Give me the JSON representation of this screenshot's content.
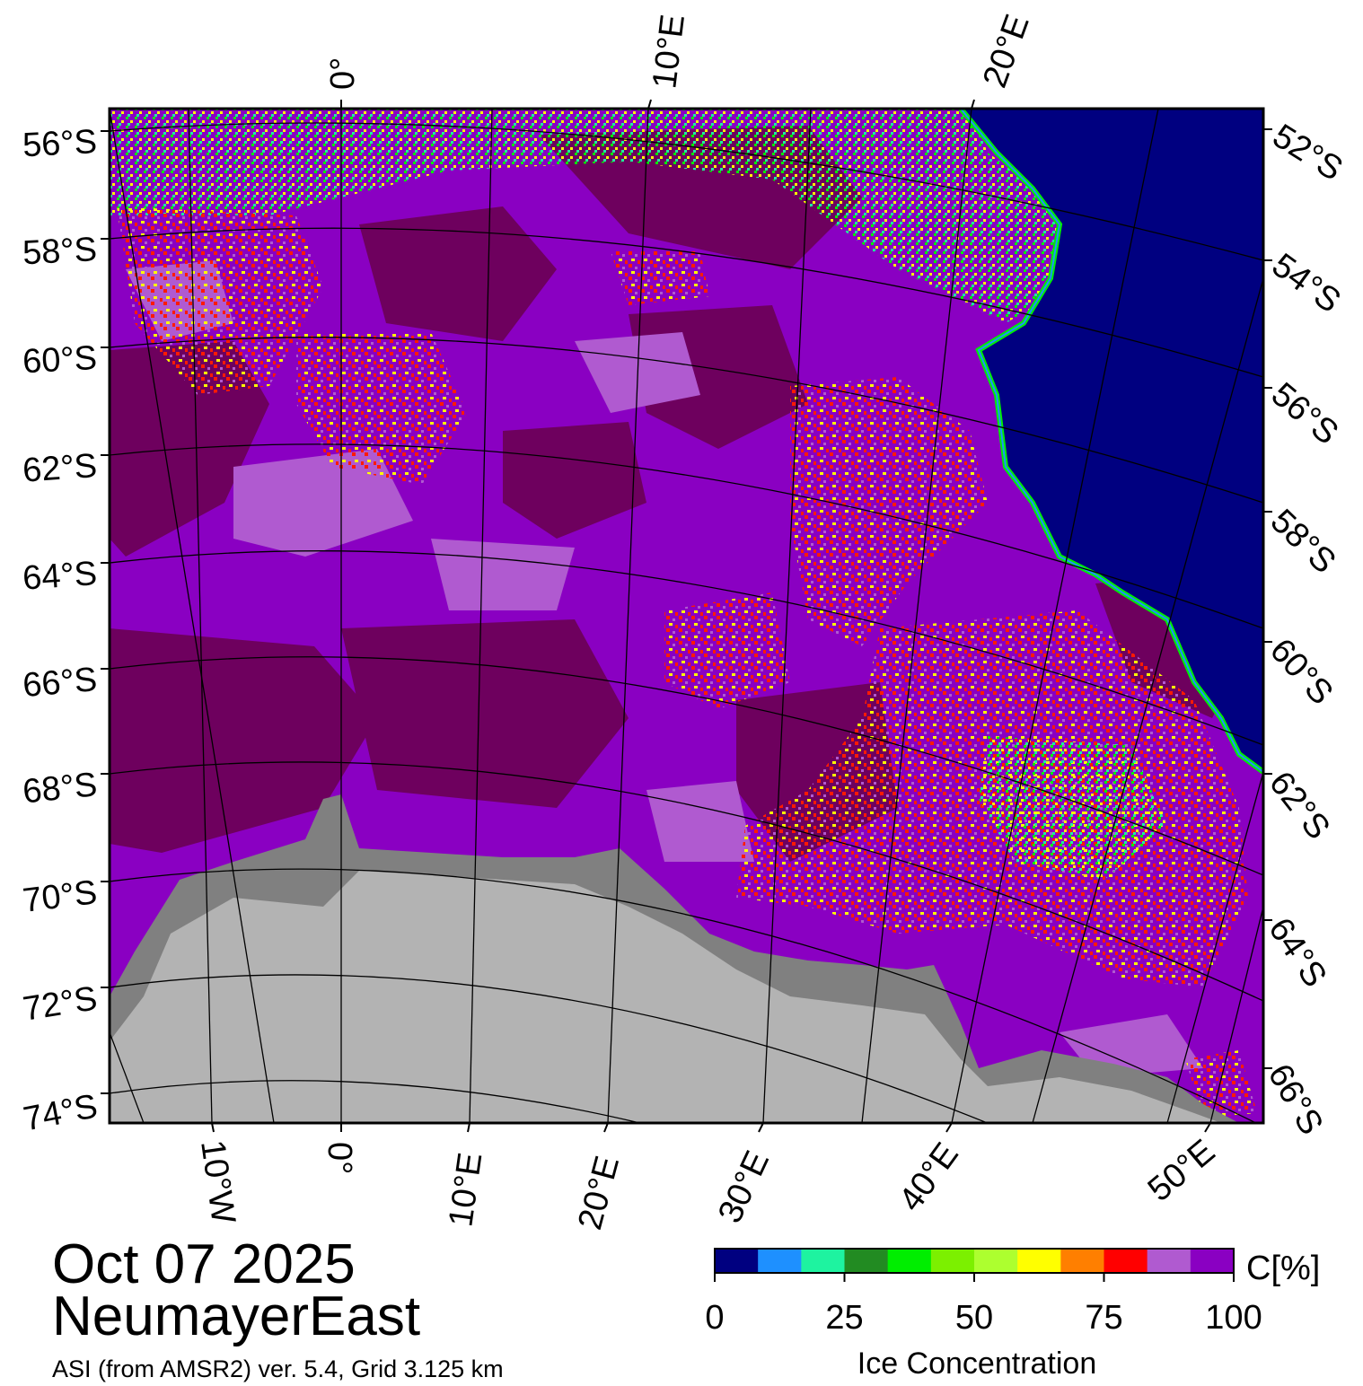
{
  "title": {
    "date": "Oct 07 2025",
    "region": "NeumayerEast",
    "source": "ASI (from AMSR2) ver. 5.4,  Grid 3.125 km"
  },
  "map": {
    "left_lat_labels": [
      "56°S",
      "58°S",
      "60°S",
      "62°S",
      "64°S",
      "66°S",
      "68°S",
      "70°S",
      "72°S",
      "74°S"
    ],
    "right_lat_labels": [
      "52°S",
      "54°S",
      "56°S",
      "58°S",
      "60°S",
      "62°S",
      "64°S",
      "66°S"
    ],
    "top_lon_labels": [
      "0°",
      "10°E",
      "20°E"
    ],
    "bottom_lon_labels": [
      "10°W",
      "0°",
      "10°E",
      "20°E",
      "30°E",
      "40°E",
      "50°E"
    ],
    "colors": {
      "open_water": "#000080",
      "ice_high": "#6e005e",
      "ice_mid": "#8a00c2",
      "ice_light": "#b05ad0",
      "ice_red": "#ff1a00",
      "ice_yellow": "#ffff00",
      "ice_green": "#00ee00",
      "land_ice": "#b3b3b3",
      "ice_shelf": "#808080"
    }
  },
  "colorbar": {
    "unit_label": "C[%]",
    "title": "Ice Concentration",
    "tick_labels": [
      "0",
      "25",
      "50",
      "75",
      "100"
    ],
    "colors": [
      "#000080",
      "#1e90ff",
      "#1ef3a0",
      "#228b22",
      "#00ee00",
      "#7cf000",
      "#adff2f",
      "#ffff00",
      "#ff7f00",
      "#ff0000",
      "#b05ad0",
      "#8a00c2"
    ]
  }
}
